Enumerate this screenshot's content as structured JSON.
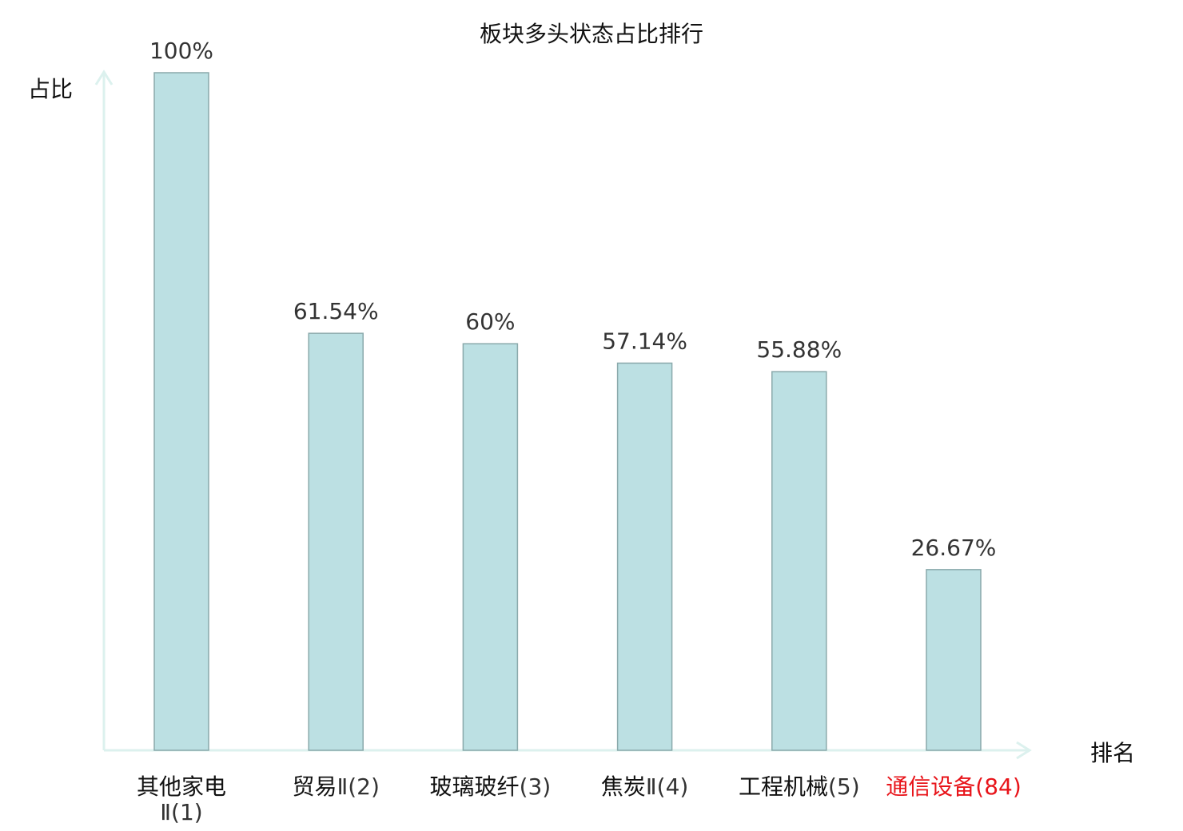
{
  "chart_data": {
    "type": "bar",
    "title": "板块多头状态占比排行",
    "ylabel": "占比",
    "xlabel": "排名",
    "ylim": [
      0,
      100
    ],
    "grid": false,
    "categories": [
      {
        "name": "其他家电",
        "suffix": "Ⅱ(1)",
        "highlight": false
      },
      {
        "name": "贸易",
        "suffix": "Ⅱ(2)",
        "highlight": false
      },
      {
        "name": "玻璃玻纤",
        "suffix": "(3)",
        "highlight": false
      },
      {
        "name": "焦炭",
        "suffix": "Ⅱ(4)",
        "highlight": false
      },
      {
        "name": "工程机械",
        "suffix": "(5)",
        "highlight": false
      },
      {
        "name": "通信设备",
        "suffix": "(84)",
        "highlight": true
      }
    ],
    "values": [
      100,
      61.54,
      60,
      57.14,
      55.88,
      26.67
    ],
    "data_labels": [
      "100%",
      "61.54%",
      "60%",
      "57.14%",
      "55.88%",
      "26.67%"
    ],
    "colors": {
      "bar": "#bce0e3",
      "bar_edge": "#8aa9ab",
      "axis": "#dcf1ee",
      "highlight": "#e8141a",
      "text": "#333333"
    }
  }
}
